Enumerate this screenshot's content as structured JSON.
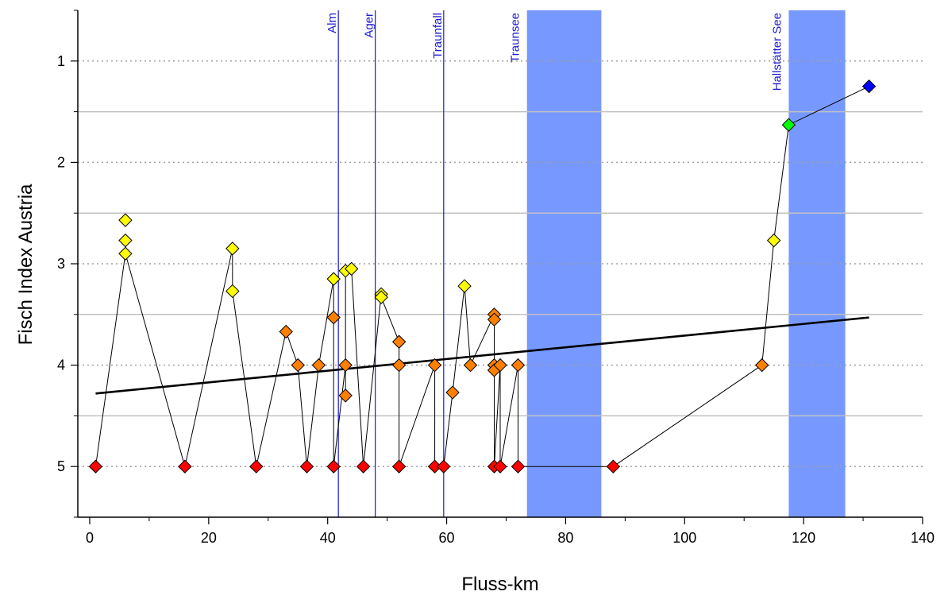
{
  "chart_data": {
    "type": "scatter",
    "title": "",
    "xlabel": "Fluss-km",
    "ylabel": "Fisch Index Austria",
    "xlim": [
      -2,
      140
    ],
    "ylim": [
      0.5,
      5.5
    ],
    "y_inverted": true,
    "xticks": [
      0,
      20,
      40,
      60,
      80,
      100,
      120,
      140
    ],
    "yticks": [
      1,
      2,
      3,
      4,
      5
    ],
    "grid": {
      "dotted_y": [
        1,
        2,
        3,
        4,
        5
      ],
      "solid_y": [
        1.5,
        2.5,
        3.5,
        4.5
      ]
    },
    "lakes": [
      {
        "name": "Traunsee",
        "x_start": 73.5,
        "x_end": 86
      },
      {
        "name": "Hallstätter See",
        "x_start": 117.5,
        "x_end": 127
      }
    ],
    "rivers": [
      {
        "name": "Alm",
        "x": 41.8
      },
      {
        "name": "Ager",
        "x": 48
      },
      {
        "name": "Traunfall",
        "x": 59.5
      }
    ],
    "trendline": {
      "x": [
        1,
        131
      ],
      "y": [
        4.28,
        3.53
      ]
    },
    "path": [
      [
        1,
        5
      ],
      [
        6,
        2.9
      ],
      [
        16,
        5
      ],
      [
        24,
        2.85
      ],
      [
        24,
        3.27
      ],
      [
        28,
        5
      ],
      [
        33,
        3.67
      ],
      [
        35,
        4
      ],
      [
        36.5,
        5
      ],
      [
        38.5,
        4
      ],
      [
        41,
        3.15
      ],
      [
        41,
        3.53
      ],
      [
        41,
        5
      ],
      [
        43,
        4
      ],
      [
        43,
        4.3
      ],
      [
        43,
        3.07
      ],
      [
        44,
        3.05
      ],
      [
        46,
        5
      ],
      [
        49,
        3.3
      ],
      [
        49,
        3.33
      ],
      [
        52,
        3.77
      ],
      [
        52,
        4
      ],
      [
        52,
        5
      ],
      [
        58,
        4
      ],
      [
        58,
        5
      ],
      [
        59.5,
        5
      ],
      [
        61,
        4.27
      ],
      [
        63,
        3.22
      ],
      [
        64,
        4
      ],
      [
        68,
        3.5
      ],
      [
        68,
        3.55
      ],
      [
        68,
        4.05
      ],
      [
        68,
        4
      ],
      [
        68,
        5
      ],
      [
        69,
        4
      ],
      [
        69,
        5
      ],
      [
        72,
        4
      ],
      [
        72,
        5
      ],
      [
        88,
        5
      ],
      [
        113,
        4
      ],
      [
        115,
        2.77
      ],
      [
        117.5,
        1.63
      ],
      [
        131,
        1.25
      ]
    ],
    "points": [
      {
        "x": 1,
        "y": 5,
        "color": "#ff0000"
      },
      {
        "x": 6,
        "y": 2.57,
        "color": "#ffff00"
      },
      {
        "x": 6,
        "y": 2.77,
        "color": "#ffff00"
      },
      {
        "x": 6,
        "y": 2.9,
        "color": "#ffff00"
      },
      {
        "x": 16,
        "y": 5,
        "color": "#ff0000"
      },
      {
        "x": 24,
        "y": 2.85,
        "color": "#ffff00"
      },
      {
        "x": 24,
        "y": 3.27,
        "color": "#ffff00"
      },
      {
        "x": 28,
        "y": 5,
        "color": "#ff0000"
      },
      {
        "x": 33,
        "y": 3.67,
        "color": "#ff8000"
      },
      {
        "x": 35,
        "y": 4,
        "color": "#ff8000"
      },
      {
        "x": 36.5,
        "y": 5,
        "color": "#ff0000"
      },
      {
        "x": 38.5,
        "y": 4,
        "color": "#ff8000"
      },
      {
        "x": 41,
        "y": 3.15,
        "color": "#ffff00"
      },
      {
        "x": 41,
        "y": 3.53,
        "color": "#ff8000"
      },
      {
        "x": 41,
        "y": 5,
        "color": "#ff0000"
      },
      {
        "x": 43,
        "y": 3.07,
        "color": "#ffff00"
      },
      {
        "x": 43,
        "y": 4,
        "color": "#ff8000"
      },
      {
        "x": 43,
        "y": 4.3,
        "color": "#ff8000"
      },
      {
        "x": 44,
        "y": 3.05,
        "color": "#ffff00"
      },
      {
        "x": 46,
        "y": 5,
        "color": "#ff0000"
      },
      {
        "x": 49,
        "y": 3.3,
        "color": "#ffff00"
      },
      {
        "x": 49,
        "y": 3.33,
        "color": "#ffff00"
      },
      {
        "x": 52,
        "y": 3.77,
        "color": "#ff8000"
      },
      {
        "x": 52,
        "y": 4,
        "color": "#ff8000"
      },
      {
        "x": 52,
        "y": 5,
        "color": "#ff0000"
      },
      {
        "x": 58,
        "y": 4,
        "color": "#ff8000"
      },
      {
        "x": 58,
        "y": 5,
        "color": "#ff0000"
      },
      {
        "x": 59.5,
        "y": 5,
        "color": "#ff0000"
      },
      {
        "x": 61,
        "y": 4.27,
        "color": "#ff8000"
      },
      {
        "x": 63,
        "y": 3.22,
        "color": "#ffff00"
      },
      {
        "x": 64,
        "y": 4,
        "color": "#ff8000"
      },
      {
        "x": 68,
        "y": 3.5,
        "color": "#ff8000"
      },
      {
        "x": 68,
        "y": 3.55,
        "color": "#ff8000"
      },
      {
        "x": 68,
        "y": 4,
        "color": "#ff8000"
      },
      {
        "x": 68,
        "y": 4.05,
        "color": "#ff8000"
      },
      {
        "x": 68,
        "y": 5,
        "color": "#ff0000"
      },
      {
        "x": 69,
        "y": 4,
        "color": "#ff8000"
      },
      {
        "x": 69,
        "y": 5,
        "color": "#ff0000"
      },
      {
        "x": 72,
        "y": 4,
        "color": "#ff8000"
      },
      {
        "x": 72,
        "y": 5,
        "color": "#ff0000"
      },
      {
        "x": 88,
        "y": 5,
        "color": "#ff0000"
      },
      {
        "x": 113,
        "y": 4,
        "color": "#ff8000"
      },
      {
        "x": 115,
        "y": 2.77,
        "color": "#ffff00"
      },
      {
        "x": 117.5,
        "y": 1.63,
        "color": "#00ff00"
      },
      {
        "x": 131,
        "y": 1.25,
        "color": "#0000ff"
      }
    ]
  }
}
